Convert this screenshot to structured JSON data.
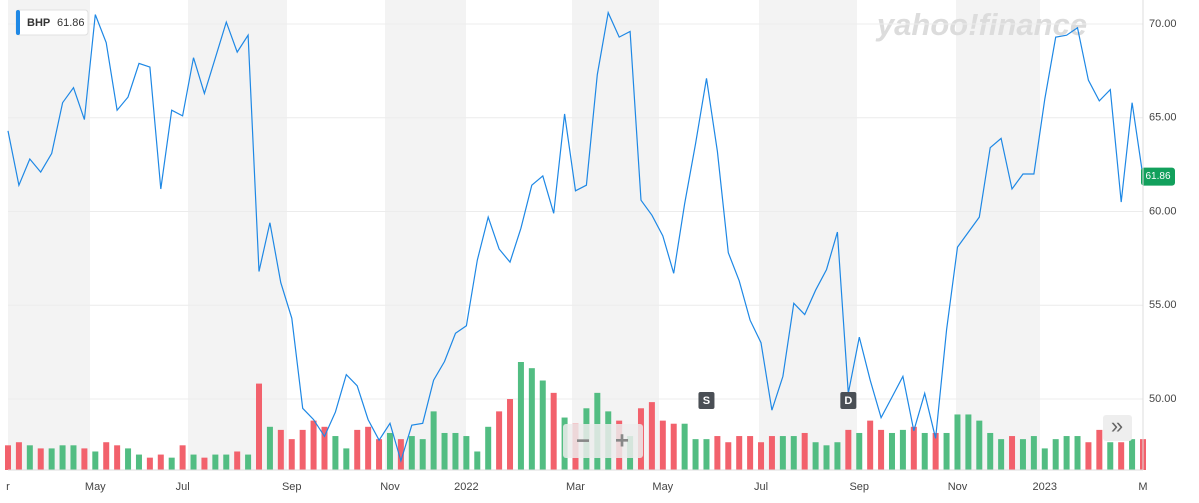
{
  "chart_data": {
    "type": "stock",
    "watermark": "yahoo!finance",
    "categories": [
      "r",
      null,
      null,
      null,
      null,
      null,
      null,
      null,
      "May",
      null,
      null,
      null,
      null,
      null,
      null,
      null,
      "Jul",
      null,
      null,
      null,
      null,
      null,
      null,
      null,
      null,
      null,
      "Sep",
      null,
      null,
      null,
      null,
      null,
      null,
      null,
      null,
      "Nov",
      null,
      null,
      null,
      null,
      null,
      null,
      "2022",
      null,
      null,
      null,
      null,
      null,
      null,
      null,
      null,
      null,
      "Mar",
      null,
      null,
      null,
      null,
      null,
      null,
      null,
      "May",
      null,
      null,
      null,
      null,
      null,
      null,
      null,
      null,
      "Jul",
      null,
      null,
      null,
      null,
      null,
      null,
      null,
      null,
      "Sep",
      null,
      null,
      null,
      null,
      null,
      null,
      null,
      null,
      "Nov",
      null,
      null,
      null,
      null,
      null,
      null,
      null,
      "2023",
      null,
      null,
      null,
      null,
      null,
      null,
      null,
      null,
      "M"
    ],
    "series": [
      {
        "name": "BHP",
        "color": "#1e88e5",
        "values": [
          64.3,
          61.4,
          62.8,
          62.1,
          63.1,
          65.8,
          66.6,
          64.9,
          70.5,
          69.0,
          65.4,
          66.1,
          67.9,
          67.7,
          61.2,
          65.4,
          65.1,
          68.2,
          66.3,
          68.2,
          70.1,
          68.5,
          69.4,
          56.8,
          59.4,
          56.2,
          54.3,
          49.5,
          48.9,
          48.0,
          49.3,
          51.3,
          50.7,
          48.9,
          47.8,
          48.7,
          46.7,
          48.6,
          48.7,
          51.0,
          52.0,
          53.5,
          53.9,
          57.4,
          59.7,
          58.0,
          57.3,
          59.1,
          61.4,
          61.9,
          59.9,
          65.2,
          61.1,
          61.4,
          67.3,
          70.6,
          69.3,
          69.6,
          60.6,
          59.8,
          58.7,
          56.7,
          60.4,
          63.6,
          67.1,
          63.2,
          57.8,
          56.3,
          54.2,
          53.0,
          49.4,
          51.2,
          55.1,
          54.5,
          55.8,
          56.9,
          58.9,
          50.3,
          53.3,
          51.0,
          49.0,
          50.1,
          51.2,
          48.3,
          50.3,
          47.9,
          53.7,
          58.1,
          58.9,
          59.7,
          63.4,
          63.9,
          61.2,
          62.0,
          62.0,
          66.0,
          69.3,
          69.4,
          69.8,
          67.0,
          65.9,
          66.5,
          60.5,
          65.8,
          61.86
        ]
      }
    ],
    "volume": {
      "values": [
        8,
        9,
        8,
        7,
        7,
        8,
        8,
        7,
        6,
        9,
        8,
        7,
        5,
        4,
        5,
        4,
        8,
        5,
        4,
        5,
        5,
        6,
        5,
        28,
        14,
        13,
        10,
        13,
        16,
        14,
        11,
        7,
        13,
        14,
        10,
        12,
        10,
        11,
        10,
        19,
        12,
        12,
        11,
        6,
        14,
        19,
        23,
        35,
        33,
        29,
        25,
        17,
        15,
        20,
        25,
        19,
        16,
        11,
        20,
        22,
        16,
        15,
        15,
        10,
        10,
        11,
        9,
        11,
        11,
        9,
        11,
        11,
        11,
        12,
        9,
        8,
        9,
        13,
        12,
        16,
        13,
        12,
        13,
        14,
        12,
        12,
        12,
        18,
        18,
        16,
        12,
        10,
        11,
        10,
        11,
        7,
        10,
        11,
        11,
        9,
        13,
        9,
        9,
        10,
        10
      ],
      "up_color": "#52bd82",
      "down_color": "#f2616c"
    },
    "ylim": [
      46.21,
      71.28
    ],
    "yticks": [
      {
        "value": 50,
        "label": "50.00"
      },
      {
        "value": 55,
        "label": "55.00"
      },
      {
        "value": 60,
        "label": "60.00"
      },
      {
        "value": 65,
        "label": "65.00"
      },
      {
        "value": 70,
        "label": "70.00"
      }
    ],
    "grid": true,
    "last_price_color": "#12a05c",
    "annotations": [
      {
        "text": "S",
        "index": 64
      },
      {
        "text": "D",
        "index": 77
      }
    ],
    "controls": {
      "zoom_out": "−",
      "zoom_in": "+",
      "expand": "»"
    }
  }
}
